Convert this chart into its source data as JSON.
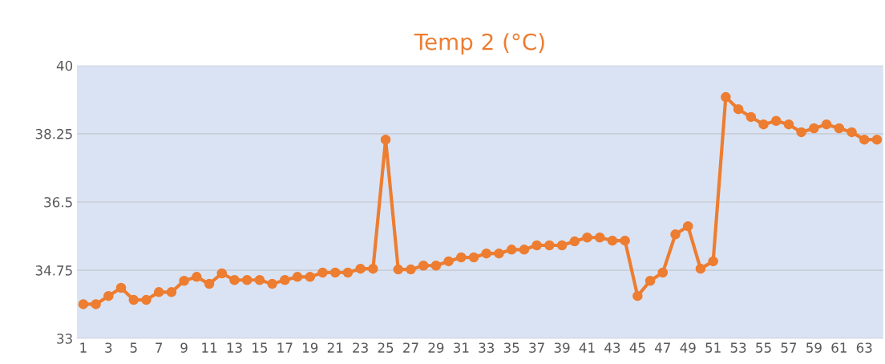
{
  "chart_data": {
    "type": "line",
    "title": "Temp 2 (°C)",
    "categories": [
      "1",
      null,
      "3",
      null,
      "5",
      null,
      "7",
      null,
      "9",
      null,
      "11",
      null,
      "13",
      null,
      "15",
      null,
      "17",
      null,
      "19",
      null,
      "21",
      null,
      "23",
      null,
      "25",
      null,
      "27",
      null,
      "29",
      null,
      "31",
      null,
      "33",
      null,
      "35",
      null,
      "37",
      null,
      "39",
      null,
      "41",
      null,
      "43",
      null,
      "45",
      null,
      "47",
      null,
      "49",
      null,
      "51",
      null,
      "53",
      null,
      "55",
      null,
      "57",
      null,
      "59",
      null,
      "61",
      null,
      "63",
      null
    ],
    "series": [
      {
        "color": "#ed7d31",
        "values": [
          33.88,
          33.88,
          34.09,
          34.3,
          33.99,
          33.99,
          34.19,
          34.19,
          34.48,
          34.58,
          34.4,
          34.67,
          34.5,
          34.5,
          34.5,
          34.4,
          34.5,
          34.58,
          34.58,
          34.69,
          34.69,
          34.69,
          34.79,
          34.79,
          38.1,
          34.77,
          34.77,
          34.87,
          34.87,
          34.98,
          35.08,
          35.08,
          35.18,
          35.18,
          35.28,
          35.28,
          35.39,
          35.39,
          35.39,
          35.49,
          35.59,
          35.59,
          35.51,
          35.51,
          34.09,
          34.48,
          34.69,
          35.67,
          35.88,
          34.79,
          34.98,
          39.19,
          38.88,
          38.68,
          38.49,
          38.58,
          38.49,
          38.29,
          38.39,
          38.49,
          38.39,
          38.29,
          38.1,
          38.1
        ]
      }
    ],
    "ylim": [
      33,
      40
    ],
    "yticks": [
      33,
      34.75,
      36.5,
      38.25,
      40
    ],
    "grid": "y",
    "marker": "circle",
    "line_style": "solid"
  }
}
